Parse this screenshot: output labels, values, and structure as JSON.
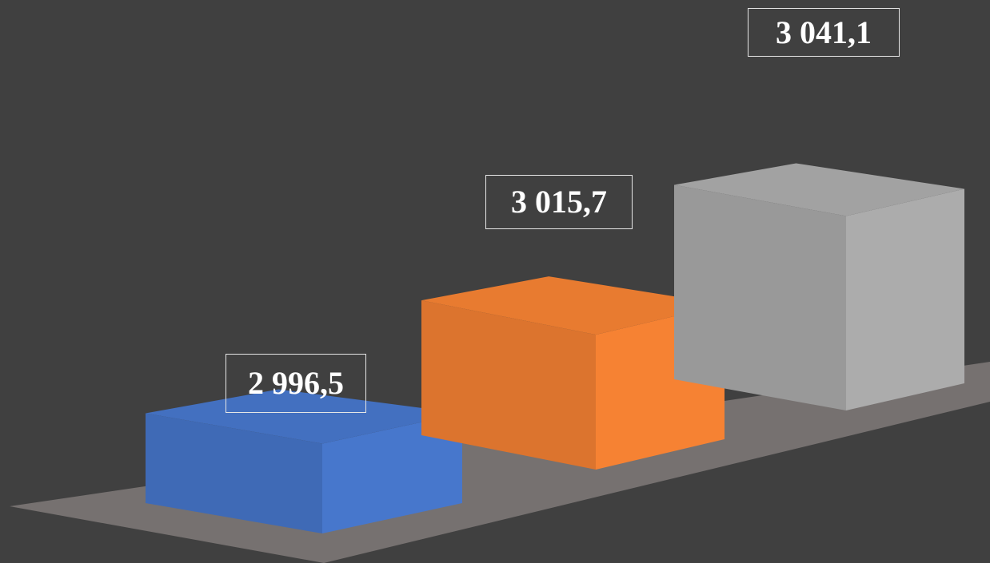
{
  "colors": {
    "background": "#404040",
    "floor": "#767170",
    "label_border": "#e6e6e6",
    "label_text": "#ffffff"
  },
  "chart_data": {
    "type": "bar",
    "style": "3d-columns",
    "categories": [
      "",
      "",
      ""
    ],
    "values": [
      2996.5,
      3015.7,
      3041.1
    ],
    "data_labels": [
      "2 996,5",
      "3 015,7",
      "3 041,1"
    ],
    "bar_colors": [
      "#4472c4",
      "#ed7d31",
      "#a5a5a5"
    ],
    "title": "",
    "xlabel": "",
    "ylabel": "",
    "legend": "none",
    "grid": false,
    "axes_visible": false
  }
}
